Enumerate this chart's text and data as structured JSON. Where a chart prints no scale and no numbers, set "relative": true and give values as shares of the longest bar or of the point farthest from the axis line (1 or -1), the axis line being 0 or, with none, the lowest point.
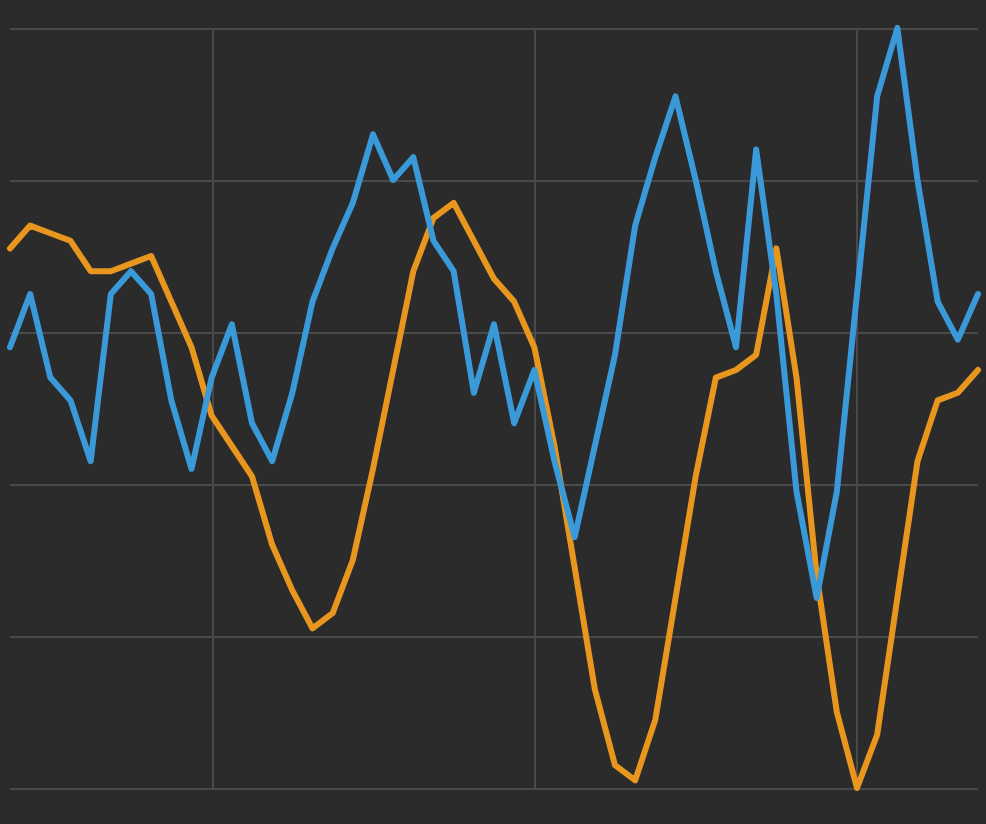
{
  "chart_data": {
    "type": "line",
    "relative": true,
    "grid": true,
    "marker": "none",
    "line_style": "solid",
    "categories": [
      null,
      null,
      null,
      null,
      null,
      null,
      null,
      null,
      null,
      null,
      null,
      null,
      null,
      null,
      null,
      null,
      null,
      null,
      null,
      null,
      null,
      null,
      null,
      null,
      null,
      null,
      null,
      null,
      null,
      null,
      null,
      null,
      null,
      null,
      null,
      null,
      null,
      null,
      null,
      null,
      null,
      null,
      null,
      null,
      null,
      null,
      null,
      null,
      null
    ],
    "series": [
      {
        "color": "#e8961e",
        "values": [
          0.71,
          0.74,
          0.73,
          0.72,
          0.68,
          0.68,
          0.69,
          0.7,
          0.64,
          0.58,
          0.49,
          0.45,
          0.41,
          0.32,
          0.26,
          0.21,
          0.23,
          0.3,
          0.42,
          0.55,
          0.68,
          0.75,
          0.77,
          0.72,
          0.67,
          0.64,
          0.58,
          0.45,
          0.29,
          0.13,
          0.03,
          0.01,
          0.09,
          0.25,
          0.41,
          0.54,
          0.55,
          0.57,
          0.71,
          0.54,
          0.28,
          0.1,
          0,
          0.07,
          0.25,
          0.43,
          0.51,
          0.52,
          0.55
        ]
      },
      {
        "color": "#3a9ad9",
        "values": [
          0.58,
          0.65,
          0.54,
          0.51,
          0.43,
          0.65,
          0.68,
          0.65,
          0.51,
          0.42,
          0.54,
          0.61,
          0.48,
          0.43,
          0.52,
          0.64,
          0.71,
          0.77,
          0.86,
          0.8,
          0.83,
          0.72,
          0.68,
          0.52,
          0.61,
          0.48,
          0.55,
          0.43,
          0.33,
          0.45,
          0.57,
          0.74,
          0.83,
          0.91,
          0.8,
          0.68,
          0.58,
          0.84,
          0.65,
          0.39,
          0.25,
          0.39,
          0.65,
          0.91,
          1,
          0.8,
          0.64,
          0.59,
          0.65
        ]
      }
    ]
  }
}
